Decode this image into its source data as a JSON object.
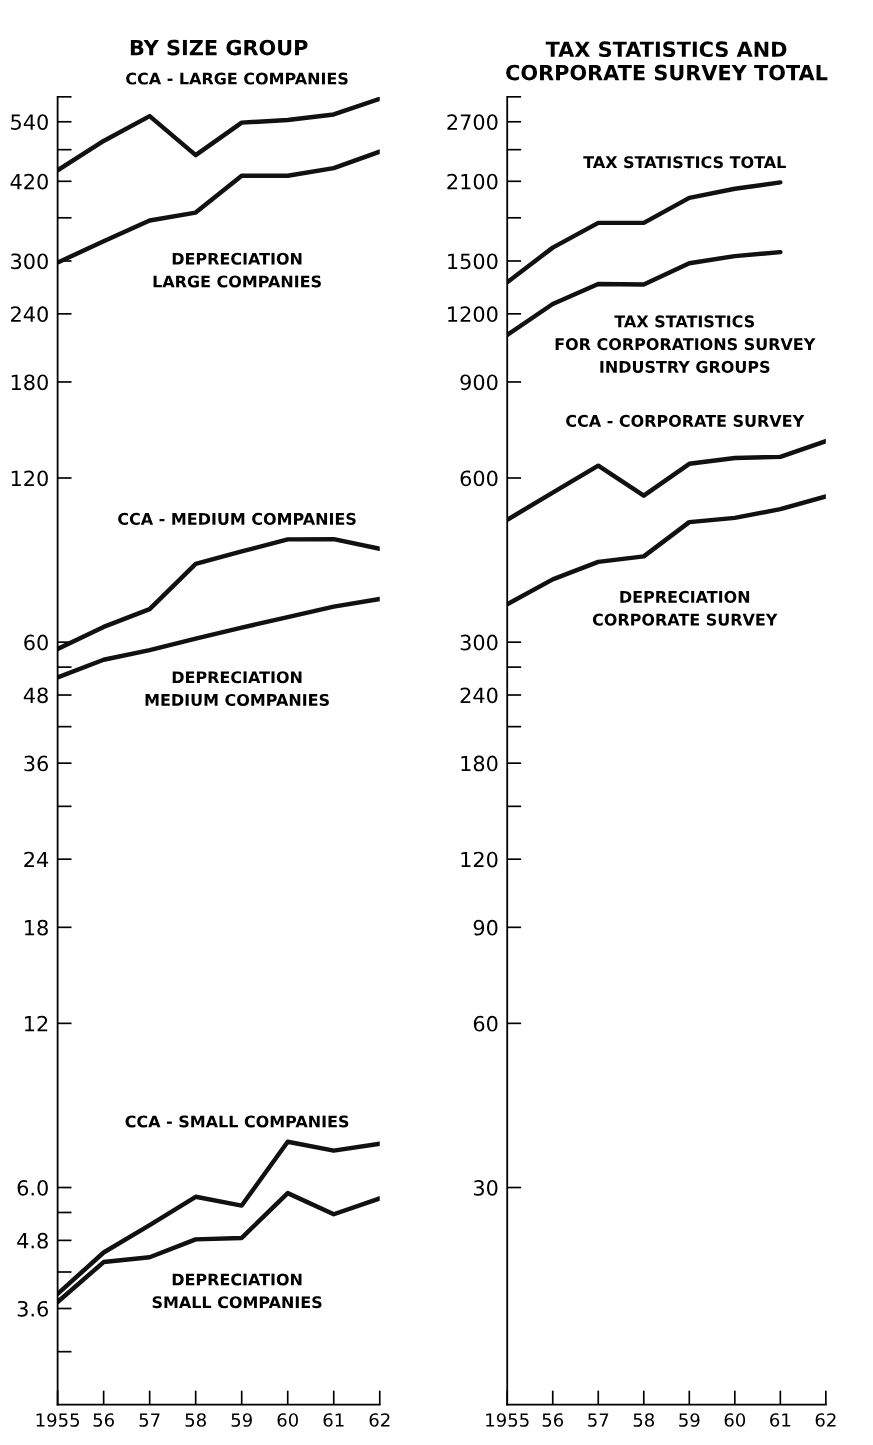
{
  "chart_data": [
    {
      "type": "line",
      "title": "BY SIZE GROUP",
      "log": true,
      "grid": false,
      "legend": false,
      "marker": "none",
      "line_style": "solid",
      "x": [
        1955,
        1956,
        1957,
        1958,
        1959,
        1960,
        1961,
        1962
      ],
      "xlim": [
        1955,
        1962
      ],
      "xticks": [
        {
          "value": 1955,
          "label": "1955"
        },
        {
          "value": 1956,
          "label": "56"
        },
        {
          "value": 1957,
          "label": "57"
        },
        {
          "value": 1958,
          "label": "58"
        },
        {
          "value": 1959,
          "label": "59"
        },
        {
          "value": 1960,
          "label": "60"
        },
        {
          "value": 1961,
          "label": "61"
        },
        {
          "value": 1962,
          "label": "62"
        }
      ],
      "ylim": [
        2.4,
        600
      ],
      "yticks": [
        {
          "value": 600,
          "label": null
        },
        540,
        {
          "value": 480,
          "label": null
        },
        420,
        {
          "value": 360,
          "label": null
        },
        300,
        240,
        180,
        120,
        60,
        {
          "value": 54,
          "label": null
        },
        48,
        {
          "value": 42,
          "label": null
        },
        36,
        {
          "value": 30,
          "label": null
        },
        24,
        18,
        12,
        {
          "value": 6,
          "label": "6.0"
        },
        {
          "value": 5.4,
          "label": null
        },
        4.8,
        {
          "value": 4.2,
          "label": null
        },
        3.6,
        {
          "value": 3,
          "label": null
        }
      ],
      "series": [
        {
          "name": "CCA - LARGE COMPANIES",
          "color": "#111111",
          "values": [
            440,
            498,
            553,
            469,
            538,
            544,
            557,
            595
          ]
        },
        {
          "name": "DEPRECIATION\nLARGE COMPANIES",
          "color": "#111111",
          "values": [
            298,
            326,
            356,
            368,
            430,
            430,
            444,
            476
          ]
        },
        {
          "name": "CCA - MEDIUM COMPANIES",
          "color": "#111111",
          "values": [
            58.3,
            64,
            69,
            83.5,
            88,
            92.6,
            92.7,
            89
          ]
        },
        {
          "name": "DEPRECIATION\nMEDIUM COMPANIES",
          "color": "#111111",
          "values": [
            51.7,
            55.7,
            58,
            60.9,
            63.8,
            66.7,
            69.7,
            72
          ]
        },
        {
          "name": "CCA - SMALL COMPANIES",
          "color": "#111111",
          "values": [
            3.83,
            4.56,
            5.12,
            5.77,
            5.56,
            7.28,
            7.01,
            7.22
          ]
        },
        {
          "name": "DEPRECIATION\nSMALL COMPANIES",
          "color": "#111111",
          "values": [
            3.7,
            4.38,
            4.47,
            4.82,
            4.85,
            5.86,
            5.36,
            5.73
          ]
        }
      ]
    },
    {
      "type": "line",
      "title": "TAX STATISTICS AND\nCORPORATE SURVEY TOTAL",
      "log": true,
      "grid": false,
      "legend": false,
      "marker": "none",
      "line_style": "solid",
      "x": [
        1955,
        1956,
        1957,
        1958,
        1959,
        1960,
        1961,
        1962
      ],
      "xlim": [
        1955,
        1962
      ],
      "xticks": [
        {
          "value": 1955,
          "label": "1955"
        },
        {
          "value": 1956,
          "label": "56"
        },
        {
          "value": 1957,
          "label": "57"
        },
        {
          "value": 1958,
          "label": "58"
        },
        {
          "value": 1959,
          "label": "59"
        },
        {
          "value": 1960,
          "label": "60"
        },
        {
          "value": 1961,
          "label": "61"
        },
        {
          "value": 1962,
          "label": "62"
        }
      ],
      "ylim": [
        12,
        3000
      ],
      "yticks": [
        {
          "value": 3000,
          "label": null
        },
        2700,
        {
          "value": 2400,
          "label": null
        },
        2100,
        {
          "value": 1800,
          "label": null
        },
        1500,
        1200,
        900,
        600,
        300,
        {
          "value": 270,
          "label": null
        },
        240,
        {
          "value": 210,
          "label": null
        },
        180,
        {
          "value": 150,
          "label": null
        },
        120,
        90,
        60,
        30
      ],
      "series": [
        {
          "name": "TAX STATISTICS TOTAL",
          "color": "#111111",
          "values": [
            1371,
            1587,
            1762,
            1762,
            1958,
            2035,
            2090,
            null
          ]
        },
        {
          "name": "TAX STATISTICS\nFOR CORPORATIONS SURVEY\nINDUSTRY GROUPS",
          "color": "#111111",
          "values": [
            1098,
            1251,
            1361,
            1358,
            1486,
            1531,
            1557,
            null
          ]
        },
        {
          "name": "CCA - CORPORATE SURVEY",
          "color": "#111111",
          "values": [
            503,
            564,
            632,
            557,
            637,
            653,
            656,
            701
          ]
        },
        {
          "name": "DEPRECIATION\nCORPORATE SURVEY",
          "color": "#111111",
          "values": [
            352,
            391,
            421,
            431,
            498,
            507,
            526,
            555
          ]
        }
      ]
    }
  ]
}
